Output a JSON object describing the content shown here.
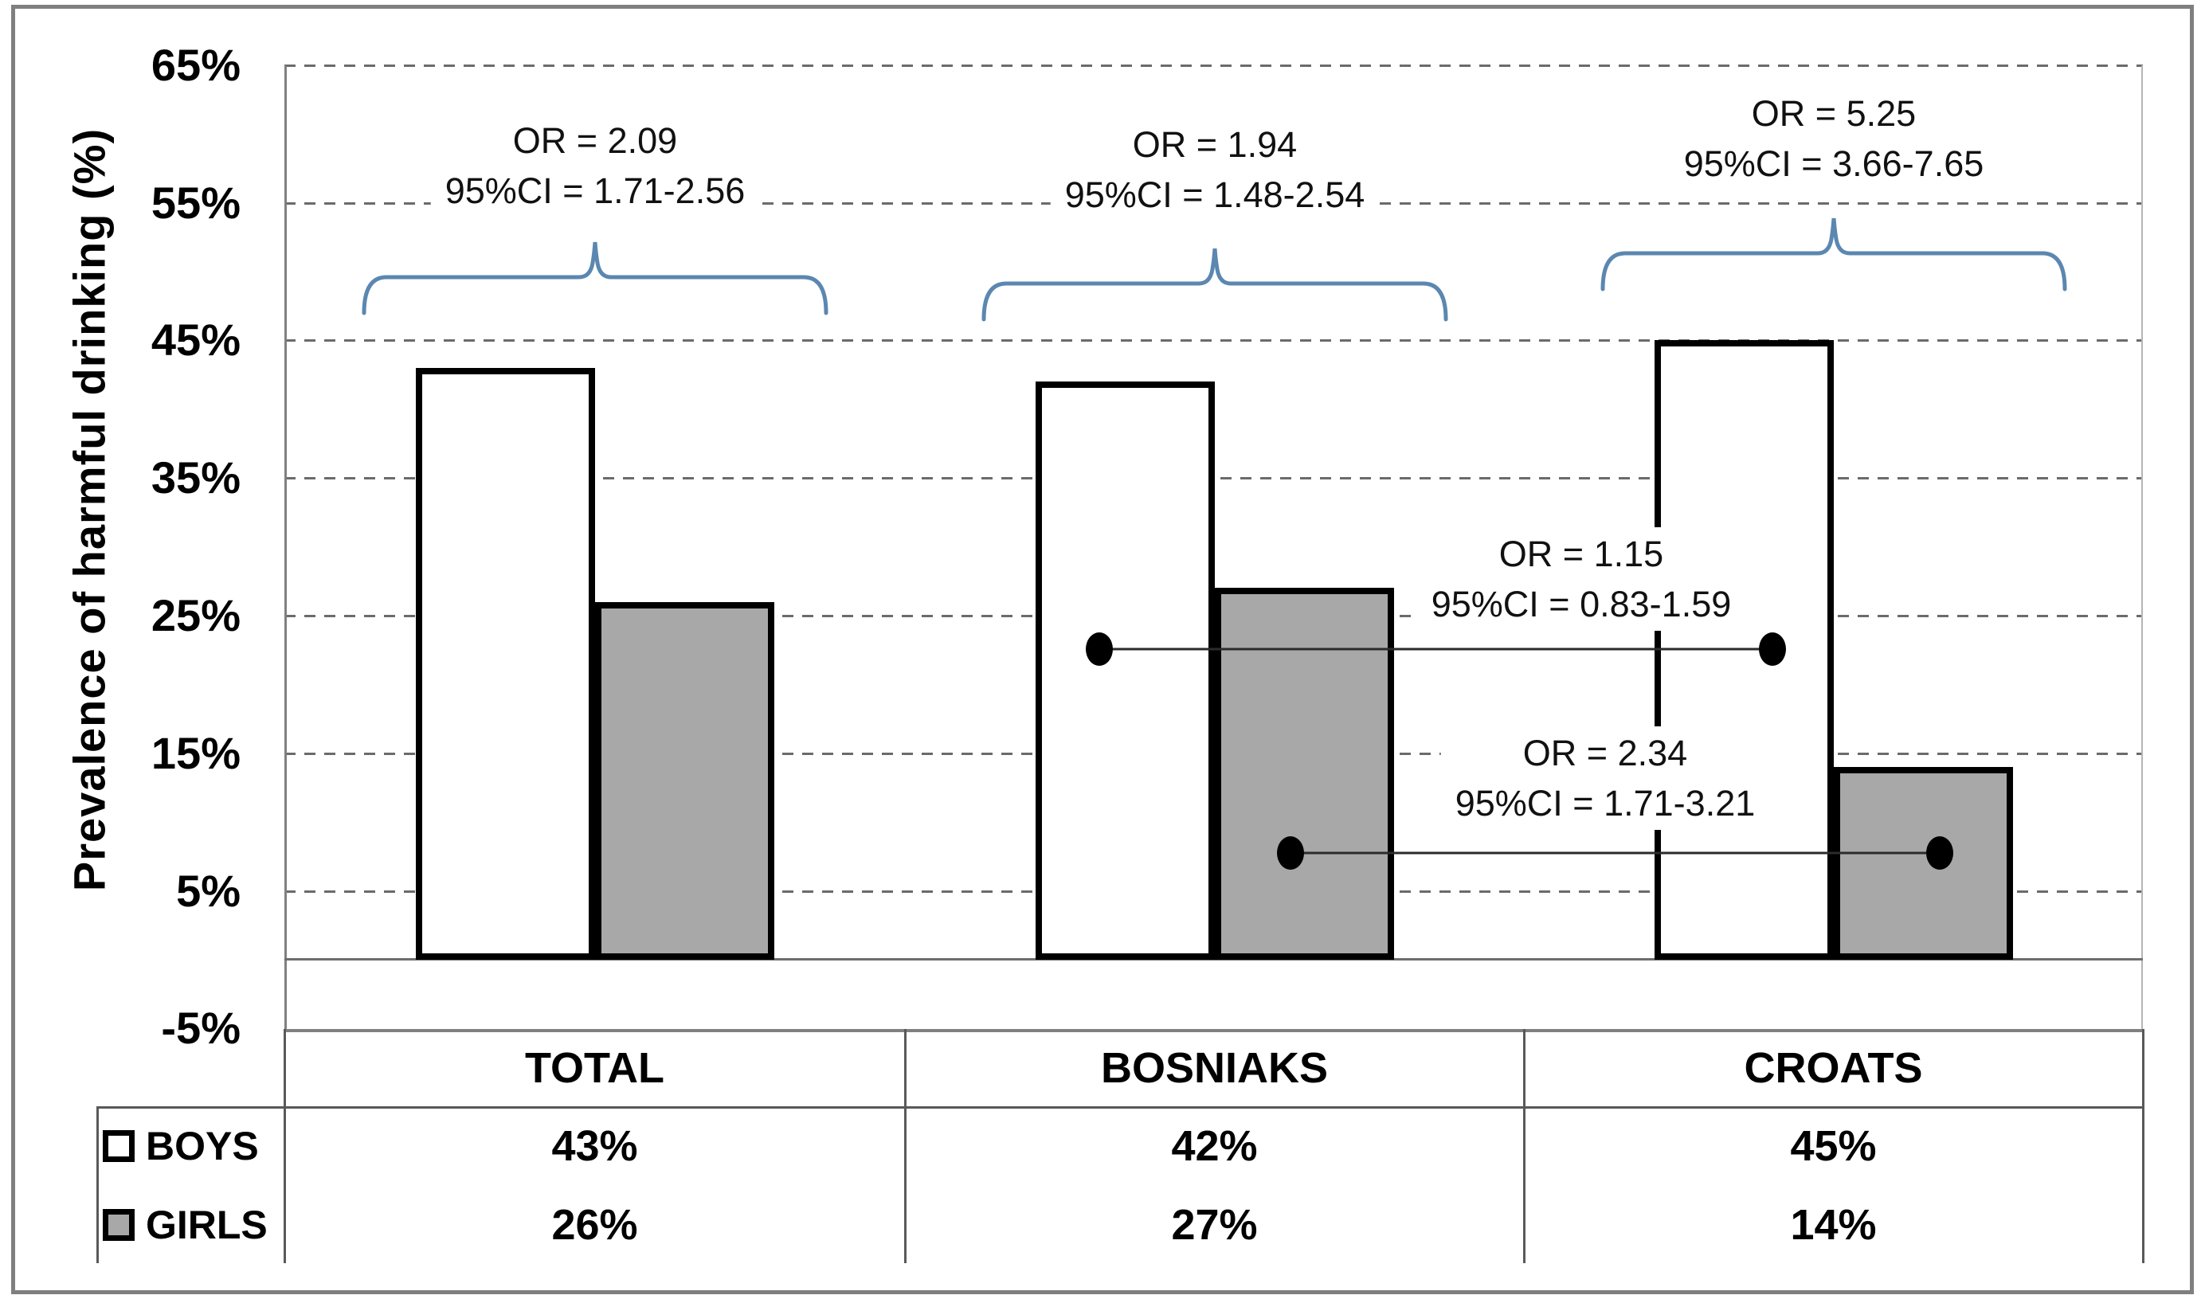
{
  "chart_data": {
    "type": "bar",
    "title": "",
    "categories": [
      "TOTAL",
      "BOSNIAKS",
      "CROATS"
    ],
    "series": [
      {
        "name": "BOYS",
        "values": [
          43,
          42,
          45
        ],
        "fill": "#ffffff"
      },
      {
        "name": "GIRLS",
        "values": [
          26,
          27,
          14
        ],
        "fill": "#a8a8a8"
      }
    ],
    "xlabel": "",
    "ylabel": "Prevalence of harmful drinking (%)",
    "ylim": [
      -5,
      65
    ],
    "y_tick_labels": [
      "65%",
      "55%",
      "45%",
      "35%",
      "25%",
      "15%",
      "5%",
      "-5%"
    ],
    "y_tick_values": [
      65,
      55,
      45,
      35,
      25,
      15,
      5,
      -5
    ],
    "gridline_values": [
      65,
      55,
      45,
      35,
      25,
      15,
      5
    ],
    "grid": "horizontal-dashed",
    "legend_position": "left-of-data-table",
    "annotations": {
      "sex_or": [
        {
          "category": "TOTAL",
          "or": "OR = 2.09",
          "ci": "95%CI = 1.71-2.56"
        },
        {
          "category": "BOSNIAKS",
          "or": "OR = 1.94",
          "ci": "95%CI = 1.48-2.54"
        },
        {
          "category": "CROATS",
          "or": "OR = 5.25",
          "ci": "95%CI = 3.66-7.65"
        }
      ],
      "ethnic_or": [
        {
          "series": "BOYS",
          "or": "OR = 1.15",
          "ci": "95%CI = 0.83-1.59"
        },
        {
          "series": "GIRLS",
          "or": "OR = 2.34",
          "ci": "95%CI = 1.71-3.21"
        }
      ]
    },
    "data_table": {
      "column_headers": [
        "TOTAL",
        "BOSNIAKS",
        "CROATS"
      ],
      "rows": [
        {
          "label": "BOYS",
          "key_fill": "#ffffff",
          "values": [
            "43%",
            "42%",
            "45%"
          ]
        },
        {
          "label": "GIRLS",
          "key_fill": "#a8a8a8",
          "values": [
            "26%",
            "27%",
            "14%"
          ]
        }
      ]
    }
  },
  "colors": {
    "brace": "#5b87b0",
    "boys_fill": "#ffffff",
    "girls_fill": "#a8a8a8",
    "bar_border": "#000000",
    "grid": "#6b6b6b",
    "axis": "#808080",
    "baseline": "#6e6e6e",
    "frame": "#7f7f7f",
    "connector": "#2b2b2b",
    "text": "#1a1a1a"
  }
}
